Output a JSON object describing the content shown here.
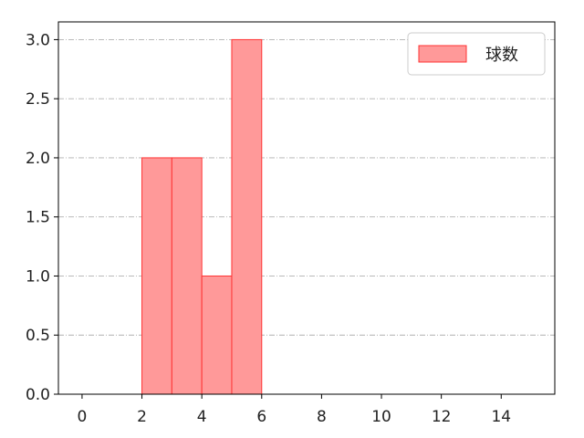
{
  "chart_data": {
    "type": "bar",
    "histogram": true,
    "bins": [
      [
        2,
        3
      ],
      [
        3,
        4
      ],
      [
        4,
        5
      ],
      [
        5,
        6
      ]
    ],
    "values": [
      2,
      2,
      1,
      3
    ],
    "series": [
      {
        "name": "球数",
        "values": [
          2,
          2,
          1,
          3
        ]
      }
    ],
    "xlim": [
      -0.79,
      15.79
    ],
    "ylim": [
      0,
      3.15
    ],
    "xticks": [
      0,
      2,
      4,
      6,
      8,
      10,
      12,
      14
    ],
    "yticks": [
      0.0,
      0.5,
      1.0,
      1.5,
      2.0,
      2.5,
      3.0
    ],
    "xtick_labels": [
      "0",
      "2",
      "4",
      "6",
      "8",
      "10",
      "12",
      "14"
    ],
    "ytick_labels": [
      "0.0",
      "0.5",
      "1.0",
      "1.5",
      "2.0",
      "2.5",
      "3.0"
    ],
    "grid": "horizontal dash-dot",
    "legend": {
      "position": "top-right",
      "entries": [
        "球数"
      ]
    },
    "colors": {
      "bar_fill": "#ff9999",
      "bar_edge": "#ff3333",
      "grid": "#b0b0b0"
    }
  }
}
